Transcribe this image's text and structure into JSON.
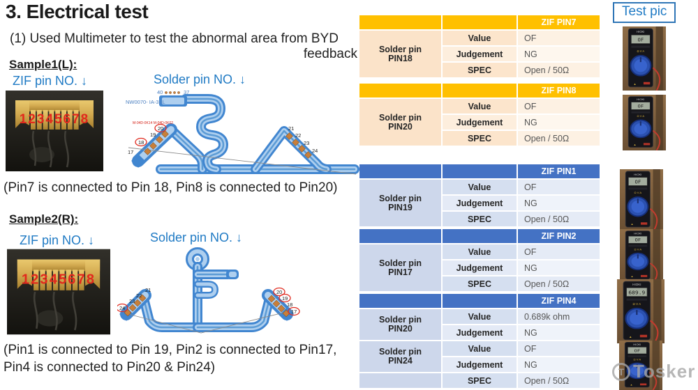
{
  "slide": {
    "title": "3. Electrical test",
    "intro_line1": "(1) Used Multimeter to test the abnormal area from BYD",
    "intro_line2": "feedback",
    "test_pic_label": "Test pic",
    "watermark_icon": "T",
    "watermark_text": "Tosker",
    "colors": {
      "accent_blue": "#1F7AC4",
      "orange_header": "#FFC000",
      "blue_header": "#4472C4"
    }
  },
  "sample1": {
    "heading": "Sample1(L):",
    "zif_label": "ZIF pin NO. ↓",
    "solder_label": "Solder pin NO. ↓",
    "zif_numbers": "12345678",
    "diagram_part_no": "NW0070-  IA-3BL",
    "diagram_red_note": "M-04D-0K14  M-04D-0K02",
    "diagram_top_pin_left": "40",
    "diagram_top_pin_right": "37",
    "left_pads": [
      "20",
      "19",
      "18",
      "17"
    ],
    "right_pads": [
      "21",
      "22",
      "23",
      "24"
    ],
    "note": "(Pin7 is connected to Pin 18, Pin8 is connected to Pin20)"
  },
  "sample2": {
    "heading": "Sample2(R):",
    "zif_label": "ZIF pin NO. ↓",
    "solder_label": "Solder pin NO. ↓",
    "zif_numbers": "12345678",
    "left_pads": [
      "21",
      "22",
      "23",
      "24"
    ],
    "right_pads": [
      "20",
      "19",
      "18",
      "17"
    ],
    "note_line1": "(Pin1 is connected to Pin 19, Pin2 is connected to Pin17,",
    "note_line2": "Pin4 is connected to Pin20 & Pin24)"
  },
  "tables": [
    {
      "theme": "orange",
      "header": "ZIF PIN7",
      "groups": [
        {
          "label": "Solder pin\nPIN18",
          "rows": [
            [
              "Value",
              "OF"
            ],
            [
              "Judgement",
              "NG"
            ],
            [
              "SPEC",
              "Open / 50Ω"
            ]
          ]
        }
      ]
    },
    {
      "theme": "orange",
      "header": "ZIF PIN8",
      "groups": [
        {
          "label": "Solder pin\nPIN20",
          "rows": [
            [
              "Value",
              "OF"
            ],
            [
              "Judgement",
              "NG"
            ],
            [
              "SPEC",
              "Open / 50Ω"
            ]
          ]
        }
      ]
    },
    {
      "theme": "blue",
      "header": "ZIF PIN1",
      "groups": [
        {
          "label": "Solder pin\nPIN19",
          "rows": [
            [
              "Value",
              "OF"
            ],
            [
              "Judgement",
              "NG"
            ],
            [
              "SPEC",
              "Open / 50Ω"
            ]
          ]
        }
      ]
    },
    {
      "theme": "blue",
      "header": "ZIF PIN2",
      "groups": [
        {
          "label": "Solder pin\nPIN17",
          "rows": [
            [
              "Value",
              "OF"
            ],
            [
              "Judgement",
              "NG"
            ],
            [
              "SPEC",
              "Open / 50Ω"
            ]
          ]
        }
      ]
    },
    {
      "theme": "blue",
      "header": "ZIF PIN4",
      "groups": [
        {
          "label": "Solder pin\nPIN20",
          "rows": [
            [
              "Value",
              "0.689k ohm"
            ],
            [
              "Judgement",
              "NG"
            ]
          ]
        },
        {
          "label": "Solder pin\nPIN24",
          "rows": [
            [
              "Value",
              "OF"
            ],
            [
              "Judgement",
              "NG"
            ]
          ]
        },
        {
          "label": "",
          "rows": [
            [
              "SPEC",
              "Open / 50Ω"
            ]
          ]
        }
      ]
    }
  ],
  "meters": [
    {
      "brand": "HIOKI",
      "display": "OF"
    },
    {
      "brand": "HIOKI",
      "display": "OF"
    },
    {
      "brand": "HIOKI",
      "display": "OF"
    },
    {
      "brand": "HIOKI",
      "display": "OF"
    },
    {
      "brand": "HIOKI",
      "display": "689.9"
    },
    {
      "brand": "HIOKI",
      "display": "OF"
    }
  ]
}
